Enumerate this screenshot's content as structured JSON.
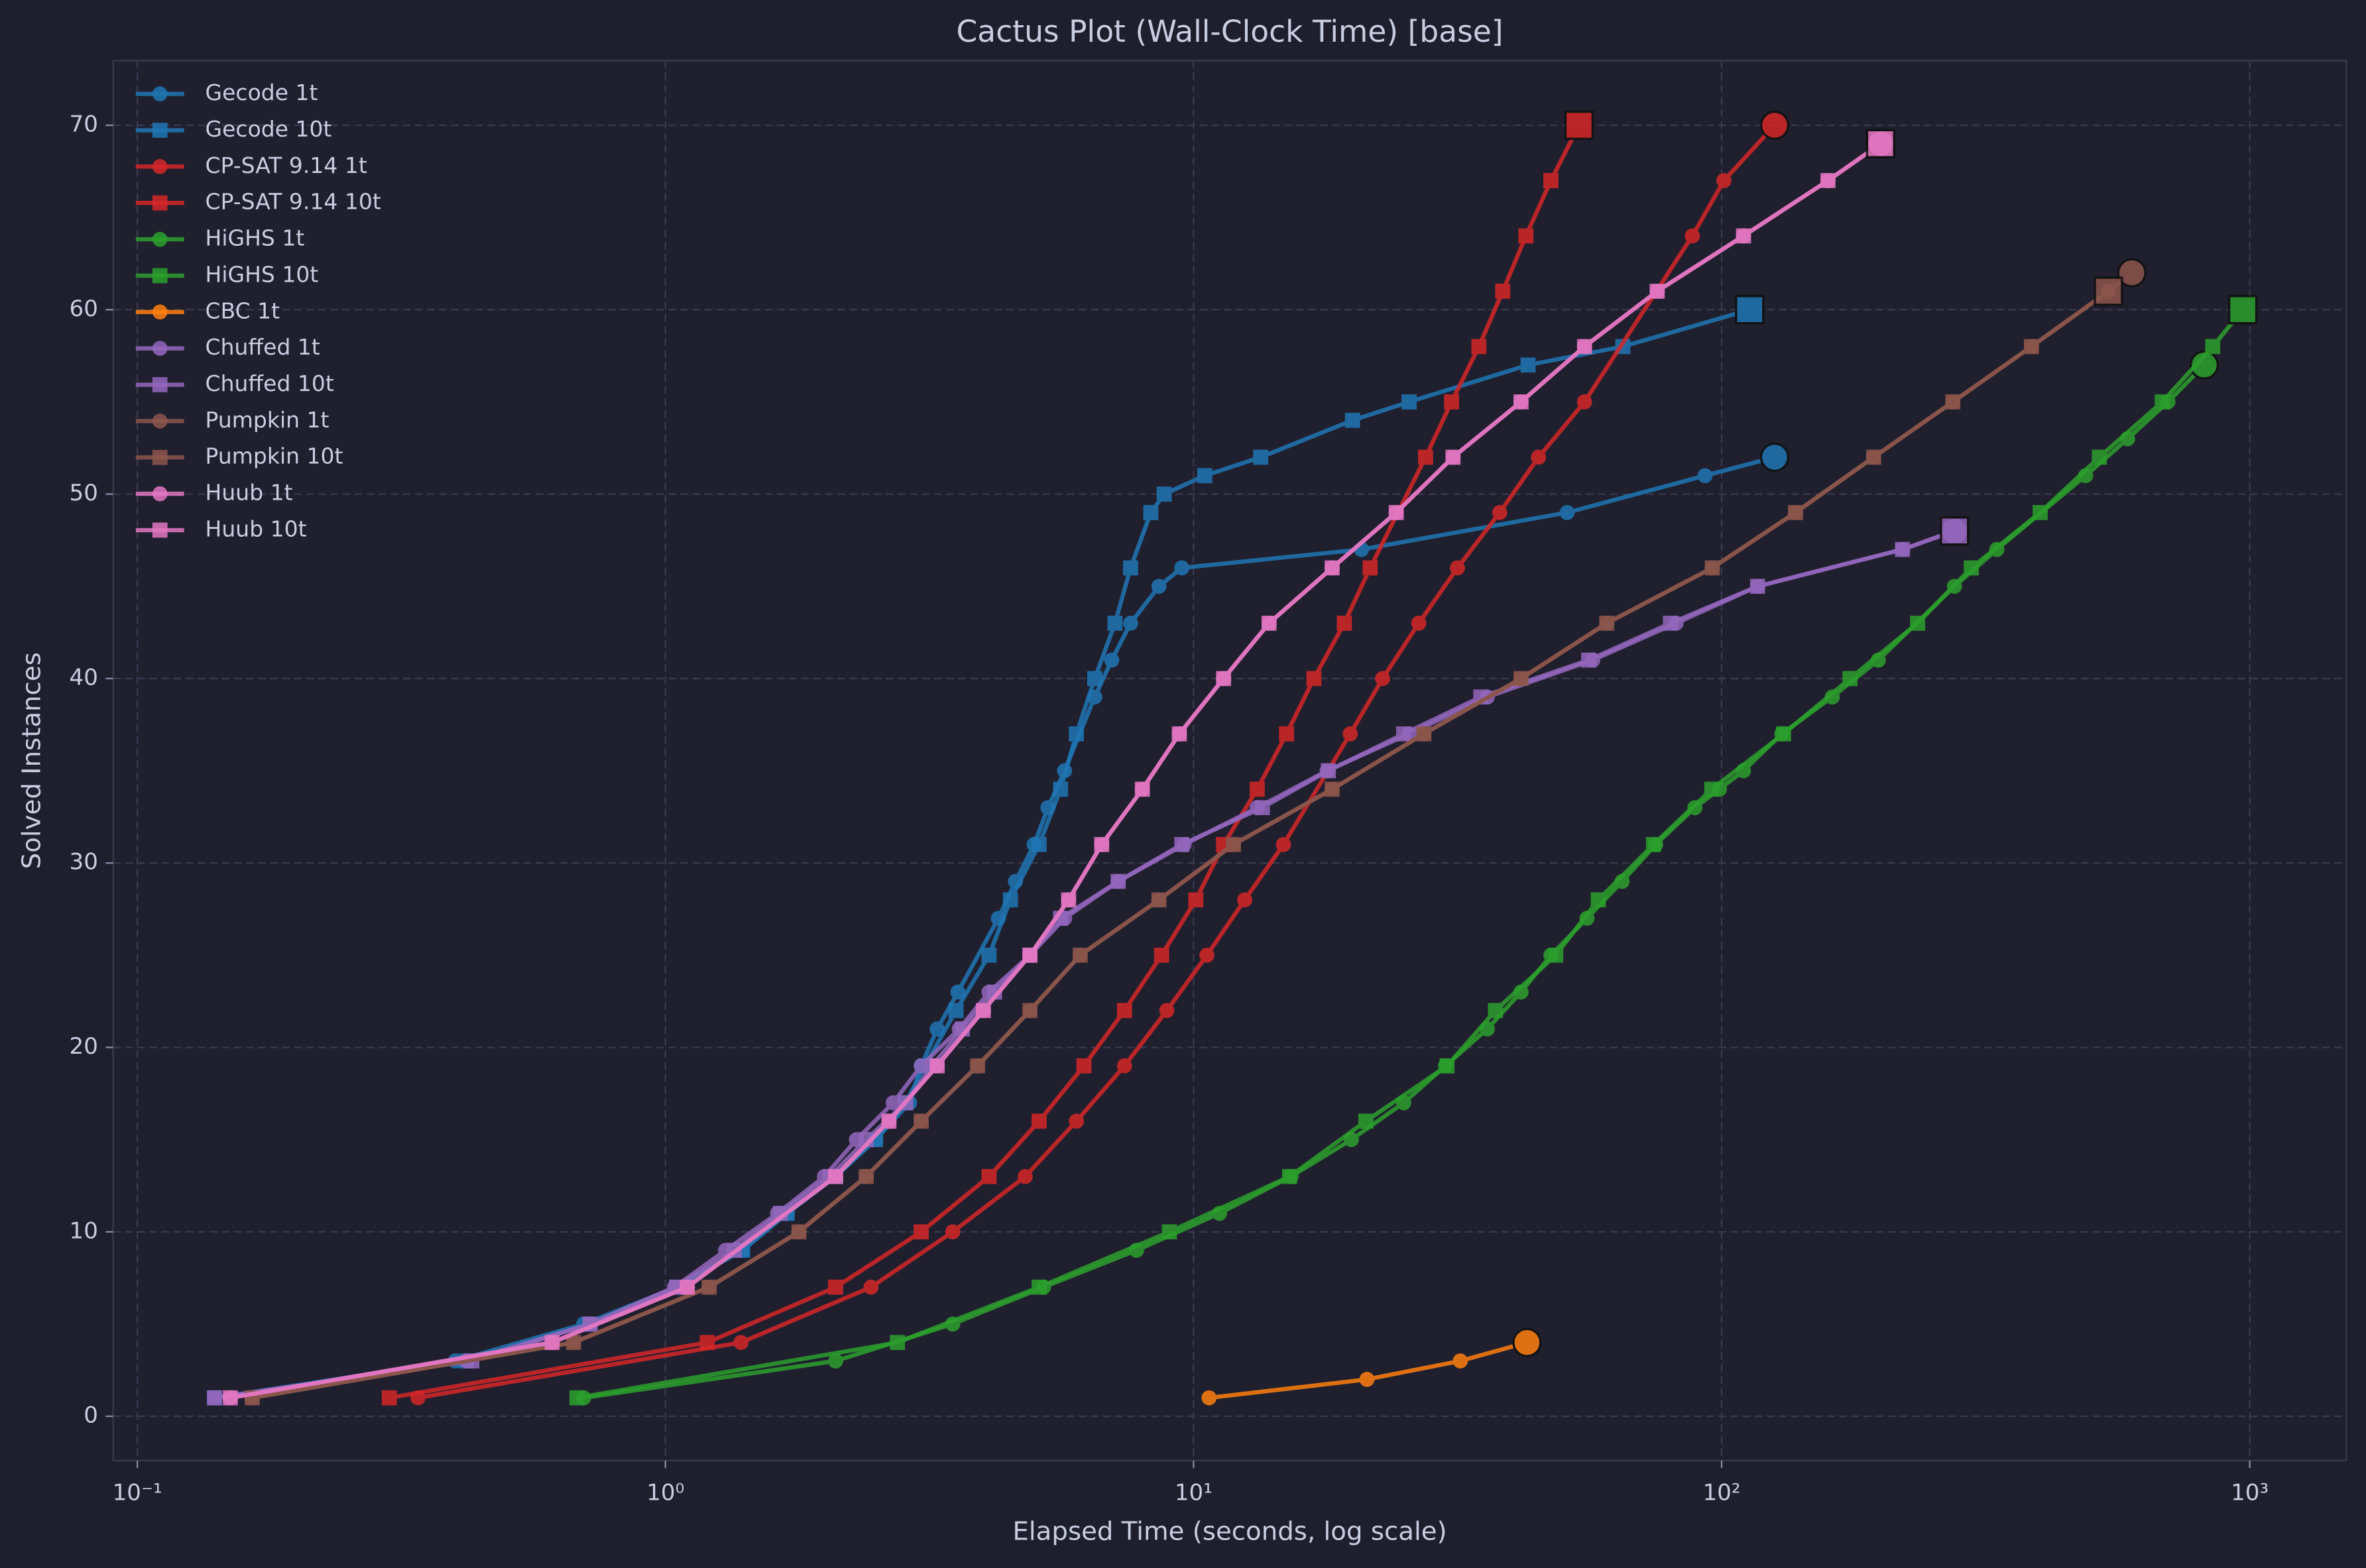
{
  "chart_data": {
    "type": "line",
    "title": "Cactus Plot (Wall-Clock Time) [base]",
    "x_label": "Elapsed Time (seconds, log scale)",
    "y_label": "Solved Instances",
    "x_scale": "log",
    "grid": true,
    "legend": "upper left",
    "xlim": [
      0.09,
      1524
    ],
    "ylim": [
      -2.4,
      73.5
    ],
    "xticks": [
      {
        "value": 0.1,
        "label": "10⁻¹"
      },
      {
        "value": 1,
        "label": "10⁰"
      },
      {
        "value": 10,
        "label": "10¹"
      },
      {
        "value": 100,
        "label": "10²"
      },
      {
        "value": 1000,
        "label": "10³"
      }
    ],
    "yticks": [
      0,
      10,
      20,
      30,
      40,
      50,
      60,
      70
    ],
    "series": [
      {
        "name": "Gecode 1t",
        "color": "#1f77b4",
        "marker": "circle",
        "x": [
          0.14,
          0.4,
          0.7,
          1.05,
          1.4,
          1.7,
          2.1,
          2.5,
          2.9,
          3.05,
          3.27,
          3.58,
          4.27,
          4.6,
          4.99,
          5.3,
          5.7,
          6.5,
          7.0,
          7.6,
          8.6,
          9.5,
          20.8,
          51,
          93,
          126
        ],
        "values": [
          1,
          3,
          5,
          7,
          9,
          11,
          13,
          15,
          17,
          19,
          21,
          23,
          27,
          29,
          31,
          33,
          35,
          39,
          41,
          43,
          45,
          46,
          47,
          49,
          51,
          52
        ]
      },
      {
        "name": "Gecode 10t",
        "color": "#1f77b4",
        "marker": "square",
        "x": [
          0.14,
          0.42,
          0.72,
          1.05,
          1.4,
          1.7,
          2.1,
          2.5,
          2.85,
          3.1,
          3.55,
          4.1,
          4.5,
          5.1,
          5.6,
          6.0,
          6.5,
          7.1,
          7.6,
          8.3,
          8.8,
          10.5,
          13.4,
          20,
          25.6,
          43,
          65,
          113
        ],
        "values": [
          1,
          3,
          5,
          7,
          9,
          11,
          13,
          15,
          17,
          19,
          22,
          25,
          28,
          31,
          34,
          37,
          40,
          43,
          46,
          49,
          50,
          51,
          52,
          54,
          55,
          57,
          58,
          60
        ]
      },
      {
        "name": "CP-SAT 9.14 1t",
        "color": "#d62728",
        "marker": "circle",
        "x": [
          0.34,
          1.39,
          2.45,
          3.5,
          4.8,
          6.0,
          7.4,
          8.9,
          10.6,
          12.5,
          14.8,
          19.8,
          22.8,
          26.7,
          31.6,
          38,
          45,
          55,
          88,
          101,
          126
        ],
        "values": [
          1,
          4,
          7,
          10,
          13,
          16,
          19,
          22,
          25,
          28,
          31,
          37,
          40,
          43,
          46,
          49,
          52,
          55,
          64,
          67,
          70
        ]
      },
      {
        "name": "CP-SAT 9.14 10t",
        "color": "#d62728",
        "marker": "square",
        "x": [
          0.3,
          1.2,
          2.1,
          3.05,
          4.1,
          5.1,
          6.2,
          7.4,
          8.7,
          10.1,
          11.4,
          13.2,
          15.0,
          16.9,
          19.3,
          21.6,
          27.5,
          30.8,
          34.7,
          38.5,
          42.6,
          47.5,
          53.7
        ],
        "values": [
          1,
          4,
          7,
          10,
          13,
          16,
          19,
          22,
          25,
          28,
          31,
          34,
          37,
          40,
          43,
          46,
          52,
          55,
          58,
          61,
          64,
          67,
          70
        ]
      },
      {
        "name": "HiGHS 1t",
        "color": "#2ca02c",
        "marker": "circle",
        "x": [
          0.7,
          2.1,
          3.5,
          5.2,
          7.8,
          11.2,
          15.3,
          19.9,
          25,
          30,
          36,
          41.7,
          47.5,
          55.6,
          64.8,
          75,
          89,
          99,
          110,
          130,
          162,
          198,
          276,
          332,
          489,
          587,
          700,
          820
        ],
        "values": [
          1,
          3,
          5,
          7,
          9,
          11,
          13,
          15,
          17,
          19,
          21,
          23,
          25,
          27,
          29,
          31,
          33,
          34,
          35,
          37,
          39,
          41,
          45,
          47,
          51,
          53,
          55,
          57
        ]
      },
      {
        "name": "HiGHS 10t",
        "color": "#2ca02c",
        "marker": "square",
        "x": [
          0.68,
          2.75,
          5.1,
          9.0,
          15.2,
          21.2,
          30.2,
          37.3,
          48.5,
          58.4,
          74.3,
          95.8,
          131,
          175,
          235,
          297,
          401,
          519,
          683,
          851,
          970
        ],
        "values": [
          1,
          4,
          7,
          10,
          13,
          16,
          19,
          22,
          25,
          28,
          31,
          34,
          37,
          40,
          43,
          46,
          49,
          52,
          55,
          58,
          60
        ]
      },
      {
        "name": "CBC 1t",
        "color": "#ff7f0e",
        "marker": "circle",
        "x": [
          10.7,
          21.3,
          32,
          42.8
        ],
        "values": [
          1,
          2,
          3,
          4
        ]
      },
      {
        "name": "Chuffed 1t",
        "color": "#9467bd",
        "marker": "circle",
        "x": [
          0.14,
          0.42,
          0.72,
          1.04,
          1.3,
          1.63,
          2.0,
          2.3,
          2.7,
          3.05,
          3.6,
          4.1,
          4.9,
          5.7,
          7.2,
          9.6,
          13.2,
          17.9,
          25.6,
          36,
          57,
          82,
          117,
          220,
          276
        ],
        "values": [
          1,
          3,
          5,
          7,
          9,
          11,
          13,
          15,
          17,
          19,
          21,
          23,
          25,
          27,
          29,
          31,
          33,
          35,
          37,
          39,
          41,
          43,
          45,
          47,
          48
        ]
      },
      {
        "name": "Chuffed 10t",
        "color": "#9467bd",
        "marker": "square",
        "x": [
          0.14,
          0.43,
          0.72,
          1.05,
          1.35,
          1.65,
          2.05,
          2.4,
          2.85,
          3.2,
          3.65,
          4.2,
          4.9,
          5.6,
          7.2,
          9.5,
          13.5,
          18,
          25,
          35,
          56,
          80,
          117,
          220,
          276
        ],
        "values": [
          1,
          3,
          5,
          7,
          9,
          11,
          13,
          15,
          17,
          19,
          21,
          23,
          25,
          27,
          29,
          31,
          33,
          35,
          37,
          39,
          41,
          43,
          45,
          47,
          48
        ]
      },
      {
        "name": "Pumpkin 1t",
        "color": "#8c564b",
        "marker": "circle",
        "x": [
          0.165,
          0.67,
          1.21,
          1.79,
          2.4,
          3.05,
          3.9,
          4.9,
          6.1,
          8.6,
          11.9,
          18.3,
          27.3,
          41.7,
          60.6,
          96,
          138,
          194,
          274,
          386,
          540,
          598
        ],
        "values": [
          1,
          4,
          7,
          10,
          13,
          16,
          19,
          22,
          25,
          28,
          31,
          34,
          37,
          40,
          43,
          46,
          49,
          52,
          55,
          58,
          61,
          62
        ]
      },
      {
        "name": "Pumpkin 10t",
        "color": "#8c564b",
        "marker": "square",
        "x": [
          0.165,
          0.67,
          1.21,
          1.79,
          2.4,
          3.05,
          3.9,
          4.9,
          6.1,
          8.6,
          11.9,
          18.3,
          27.3,
          41.7,
          60.6,
          96,
          138,
          194,
          274,
          386,
          540
        ],
        "values": [
          1,
          4,
          7,
          10,
          13,
          16,
          19,
          22,
          25,
          28,
          31,
          34,
          37,
          40,
          43,
          46,
          49,
          52,
          55,
          58,
          61
        ]
      },
      {
        "name": "Huub 1t",
        "color": "#e377c2",
        "marker": "circle",
        "x": [
          0.15,
          0.61,
          1.1,
          2.1,
          2.65,
          3.27,
          4.0,
          4.9,
          5.8,
          6.7,
          8.0,
          9.4,
          11.4,
          13.9,
          18.3,
          24.2,
          31,
          41.7,
          55,
          75.5,
          110,
          159,
          200
        ],
        "values": [
          1,
          4,
          7,
          13,
          16,
          19,
          22,
          25,
          28,
          31,
          34,
          37,
          40,
          43,
          46,
          49,
          52,
          55,
          58,
          61,
          64,
          67,
          69
        ]
      },
      {
        "name": "Huub 10t",
        "color": "#e377c2",
        "marker": "square",
        "x": [
          0.15,
          0.61,
          1.1,
          2.1,
          2.65,
          3.27,
          4.0,
          4.9,
          5.8,
          6.7,
          8.0,
          9.4,
          11.4,
          13.9,
          18.3,
          24.2,
          31,
          41.7,
          55,
          75.5,
          110,
          159,
          200
        ],
        "values": [
          1,
          4,
          7,
          13,
          16,
          19,
          22,
          25,
          28,
          31,
          34,
          37,
          40,
          43,
          46,
          49,
          52,
          55,
          58,
          61,
          64,
          67,
          69
        ]
      }
    ]
  }
}
